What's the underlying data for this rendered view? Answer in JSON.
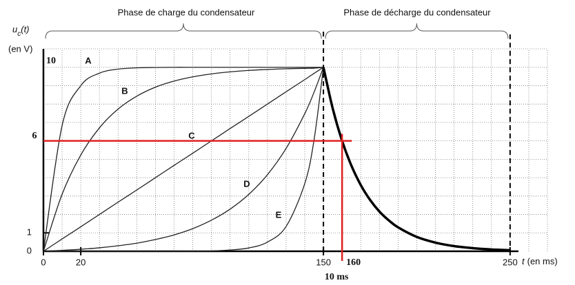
{
  "chart_data": {
    "type": "line",
    "phase_labels": [
      "Phase de charge du condensateur",
      "Phase de décharge du condensateur"
    ],
    "ylabel": {
      "main": "u",
      "sub": "c",
      "end": "(t)",
      "unit": "(en V)"
    },
    "xlabel": {
      "main": "t",
      "unit": "(en ms)"
    },
    "xlim": [
      0,
      270
    ],
    "ylim": [
      0,
      11
    ],
    "xticks": [
      0,
      20,
      150,
      250
    ],
    "yticks": [
      0,
      1
    ],
    "xgrid": [
      10,
      20,
      30,
      40,
      50,
      60,
      70,
      80,
      90,
      100,
      110,
      120,
      130,
      140,
      150,
      160,
      170,
      180,
      190,
      200,
      210,
      220,
      230,
      240,
      250,
      260,
      270
    ],
    "ygrid": [
      1,
      2,
      3,
      4,
      5,
      6,
      7,
      8,
      9,
      10,
      11
    ],
    "grid": true,
    "x": [
      0,
      10,
      20,
      30,
      40,
      50,
      60,
      70,
      80,
      90,
      100,
      110,
      120,
      130,
      140,
      145,
      150
    ],
    "series": [
      {
        "name": "A",
        "color": "#222222",
        "values": [
          0,
          6.83,
          9.0,
          9.68,
          9.9,
          9.97,
          9.99,
          10,
          10,
          10,
          10,
          10,
          10,
          10,
          10,
          10,
          10
        ]
      },
      {
        "name": "B",
        "color": "#222222",
        "values": [
          0,
          3.1,
          5.23,
          6.71,
          7.73,
          8.43,
          8.92,
          9.25,
          9.48,
          9.64,
          9.75,
          9.83,
          9.88,
          9.92,
          9.94,
          9.95,
          10
        ]
      },
      {
        "name": "C",
        "color": "#222222",
        "values": [
          0,
          0.67,
          1.33,
          2,
          2.67,
          3.33,
          4,
          4.67,
          5.33,
          6,
          6.67,
          7.33,
          8,
          8.67,
          9.33,
          9.67,
          10
        ]
      },
      {
        "name": "D",
        "color": "#222222",
        "values": [
          0,
          0.05,
          0.11,
          0.19,
          0.3,
          0.44,
          0.64,
          0.89,
          1.23,
          1.69,
          2.29,
          3.09,
          4.16,
          5.59,
          7.48,
          8.65,
          10
        ]
      },
      {
        "name": "E",
        "color": "#222222",
        "values": [
          0,
          0,
          0,
          0,
          0,
          0,
          0,
          0,
          0.01,
          0.02,
          0.07,
          0.18,
          0.5,
          1.35,
          3.68,
          6.07,
          10
        ]
      },
      {
        "color": "#000000",
        "x": [
          150,
          155,
          160,
          165,
          170,
          175,
          180,
          185,
          190,
          200,
          210,
          220,
          230,
          240,
          250
        ],
        "values": [
          10,
          7.75,
          6.0,
          4.65,
          3.6,
          2.79,
          2.16,
          1.68,
          1.3,
          0.78,
          0.47,
          0.28,
          0.17,
          0.1,
          0.06
        ]
      }
    ],
    "red_markers": {
      "color": "#e02020",
      "y_labels": [
        10,
        6
      ],
      "x_label": 160,
      "note": "10 ms"
    }
  }
}
